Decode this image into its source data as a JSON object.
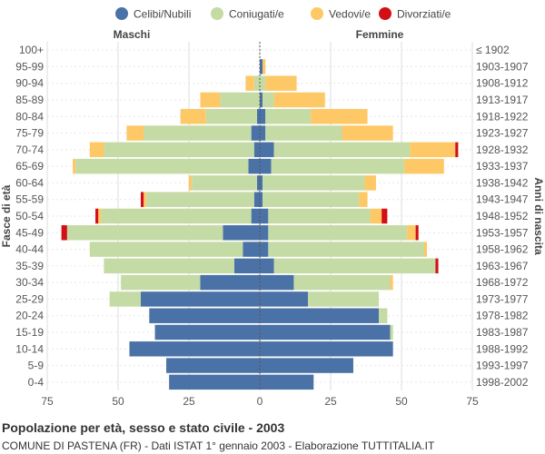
{
  "chart_data": {
    "type": "bar",
    "orientation": "horizontal",
    "stacked": true,
    "diverging": true,
    "title": "Popolazione per età, sesso e stato civile - 2003",
    "subtitle": "COMUNE DI PASTENA (FR) - Dati ISTAT 1° gennaio 2003 - Elaborazione TUTTITALIA.IT",
    "left_header": "Maschi",
    "right_header": "Femmine",
    "ylabel_left": "Fasce di età",
    "ylabel_right": "Anni di nascita",
    "xlim": [
      -75,
      75
    ],
    "xticks": [
      -75,
      -50,
      -25,
      0,
      25,
      50,
      75
    ],
    "xtick_labels": [
      "75",
      "50",
      "25",
      "0",
      "25",
      "50",
      "75"
    ],
    "legend": [
      {
        "name": "Celibi/Nubili",
        "color": "#4a72a6"
      },
      {
        "name": "Coniugati/e",
        "color": "#c4dba5"
      },
      {
        "name": "Vedovi/e",
        "color": "#fdc865"
      },
      {
        "name": "Divorziati/e",
        "color": "#d30f15"
      }
    ],
    "age_groups": [
      "100+",
      "95-99",
      "90-94",
      "85-89",
      "80-84",
      "75-79",
      "70-74",
      "65-69",
      "60-64",
      "55-59",
      "50-54",
      "45-49",
      "40-44",
      "35-39",
      "30-34",
      "25-29",
      "20-24",
      "15-19",
      "10-14",
      "5-9",
      "0-4"
    ],
    "birth_years": [
      "≤ 1902",
      "1903-1907",
      "1908-1912",
      "1913-1917",
      "1918-1922",
      "1923-1927",
      "1928-1932",
      "1933-1937",
      "1938-1942",
      "1943-1947",
      "1948-1952",
      "1953-1957",
      "1958-1962",
      "1963-1967",
      "1968-1972",
      "1973-1977",
      "1978-1982",
      "1983-1987",
      "1988-1992",
      "1993-1997",
      "1998-2002"
    ],
    "males": {
      "celibi": [
        0,
        0,
        0,
        0,
        1,
        3,
        2,
        4,
        1,
        2,
        3,
        13,
        6,
        9,
        21,
        42,
        39,
        37,
        46,
        33,
        32
      ],
      "coniugati": [
        0,
        0,
        2,
        14,
        18,
        38,
        53,
        61,
        23,
        38,
        53,
        55,
        54,
        46,
        28,
        11,
        0,
        0,
        0,
        0,
        0
      ],
      "vedovi": [
        0,
        0,
        3,
        7,
        9,
        6,
        5,
        1,
        1,
        1,
        1,
        0,
        0,
        0,
        0,
        0,
        0,
        0,
        0,
        0,
        0
      ],
      "divorziati": [
        0,
        0,
        0,
        0,
        0,
        0,
        0,
        0,
        0,
        1,
        1,
        2,
        0,
        0,
        0,
        0,
        0,
        0,
        0,
        0,
        0
      ]
    },
    "females": {
      "nubili": [
        0,
        1,
        0,
        1,
        2,
        2,
        5,
        4,
        1,
        1,
        3,
        3,
        3,
        5,
        12,
        17,
        42,
        46,
        47,
        33,
        19
      ],
      "coniugate": [
        0,
        0,
        2,
        4,
        16,
        27,
        48,
        47,
        36,
        34,
        36,
        49,
        55,
        57,
        34,
        25,
        3,
        1,
        0,
        0,
        0
      ],
      "vedove": [
        0,
        1,
        11,
        18,
        20,
        18,
        16,
        14,
        4,
        3,
        4,
        3,
        1,
        0,
        1,
        0,
        0,
        0,
        0,
        0,
        0
      ],
      "divorziate": [
        0,
        0,
        0,
        0,
        0,
        0,
        1,
        0,
        0,
        0,
        2,
        1,
        0,
        1,
        0,
        0,
        0,
        0,
        0,
        0,
        0
      ]
    }
  }
}
